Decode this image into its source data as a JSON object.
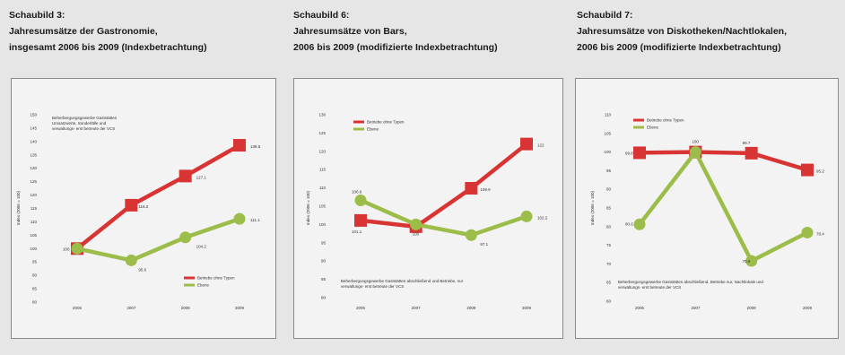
{
  "colors": {
    "red": "#d93434",
    "green": "#9cbd4a",
    "background": "#e6e6e6",
    "frame": "#f3f3f3"
  },
  "chart_data": [
    {
      "type": "line",
      "header": [
        "Schaubild 3:",
        "Jahresumsätze der Gastronomie,",
        "insgesamt 2006 bis 2009 (Indexbetrachtung)"
      ],
      "note": [
        "Beherbergungsgewerbe Gaststätten",
        "Umsatzwerte, Sonderfälle und",
        "verwaltungs- erst betreute der VCS"
      ],
      "ylabel": "Index (2006 = 100)",
      "ylim": [
        80,
        150
      ],
      "yticks": [
        "80",
        "85",
        "90",
        "95",
        "100",
        "105",
        "110",
        "115",
        "120",
        "125",
        "130",
        "135",
        "140",
        "145",
        "150"
      ],
      "categories": [
        "2006",
        "2007",
        "2008",
        "2009"
      ],
      "legend_position": "bottom-right",
      "series": [
        {
          "name": "Betriebe ohne Typen",
          "color": "red",
          "values": [
            100,
            116.2,
            127.1,
            138.6
          ],
          "labels": [
            "100",
            "116.2",
            "127.1",
            "138.6"
          ]
        },
        {
          "name": "Ebene",
          "color": "green",
          "values": [
            100,
            95.6,
            104.2,
            111.1
          ],
          "labels": [
            "",
            "95.6",
            "104.2",
            "111.1"
          ]
        }
      ]
    },
    {
      "type": "line",
      "header": [
        "Schaubild 6:",
        "Jahresumsätze von Bars,",
        "2006 bis 2009 (modifizierte Indexbetrachtung)"
      ],
      "note": [
        "Beherbergungsgewerbe Gaststätten abschließend und Betriebe, nur",
        "verwaltungs- erst betreute der VCS"
      ],
      "ylabel": "Index (2006 = 100)",
      "ylim": [
        80,
        130
      ],
      "yticks": [
        "80",
        "85",
        "90",
        "95",
        "100",
        "105",
        "110",
        "115",
        "120",
        "125",
        "130"
      ],
      "categories": [
        "2006",
        "2007",
        "2008",
        "2009"
      ],
      "legend_position": "top-left",
      "series": [
        {
          "name": "Betriebe ohne Typen",
          "color": "red",
          "values": [
            101.1,
            99.4,
            109.9,
            122
          ],
          "labels": [
            "101.1",
            "",
            "109.9",
            "122"
          ]
        },
        {
          "name": "Ebene",
          "color": "green",
          "values": [
            106.6,
            100,
            97.1,
            102.2
          ],
          "labels": [
            "106.6",
            "100",
            "97.1",
            "102.2"
          ]
        }
      ]
    },
    {
      "type": "line",
      "header": [
        "Schaubild 7:",
        "Jahresumsätze von Diskotheken/Nachtlokalen,",
        "2006 bis 2009 (modifizierte Indexbetrachtung)"
      ],
      "note": [
        "Beherbergungsgewerbe Gaststätten abschließend, Betriebe nur, Nachtlokale und",
        "verwaltungs- erst betreute der VCS"
      ],
      "ylabel": "Index (2006 = 100)",
      "ylim": [
        60,
        110
      ],
      "yticks": [
        "60",
        "65",
        "70",
        "75",
        "80",
        "85",
        "90",
        "95",
        "100",
        "105",
        "110"
      ],
      "categories": [
        "2006",
        "2007",
        "2008",
        "2009"
      ],
      "legend_position": "top-left",
      "series": [
        {
          "name": "Betriebe ohne Typen",
          "color": "red",
          "values": [
            99.8,
            100,
            99.7,
            95.2
          ],
          "labels": [
            "99.8",
            "",
            "99.7",
            "95.2"
          ]
        },
        {
          "name": "Ebene",
          "color": "green",
          "values": [
            80.6,
            100,
            70.8,
            78.4
          ],
          "labels": [
            "80.6",
            "100",
            "70.8",
            "78.4"
          ]
        }
      ]
    }
  ]
}
